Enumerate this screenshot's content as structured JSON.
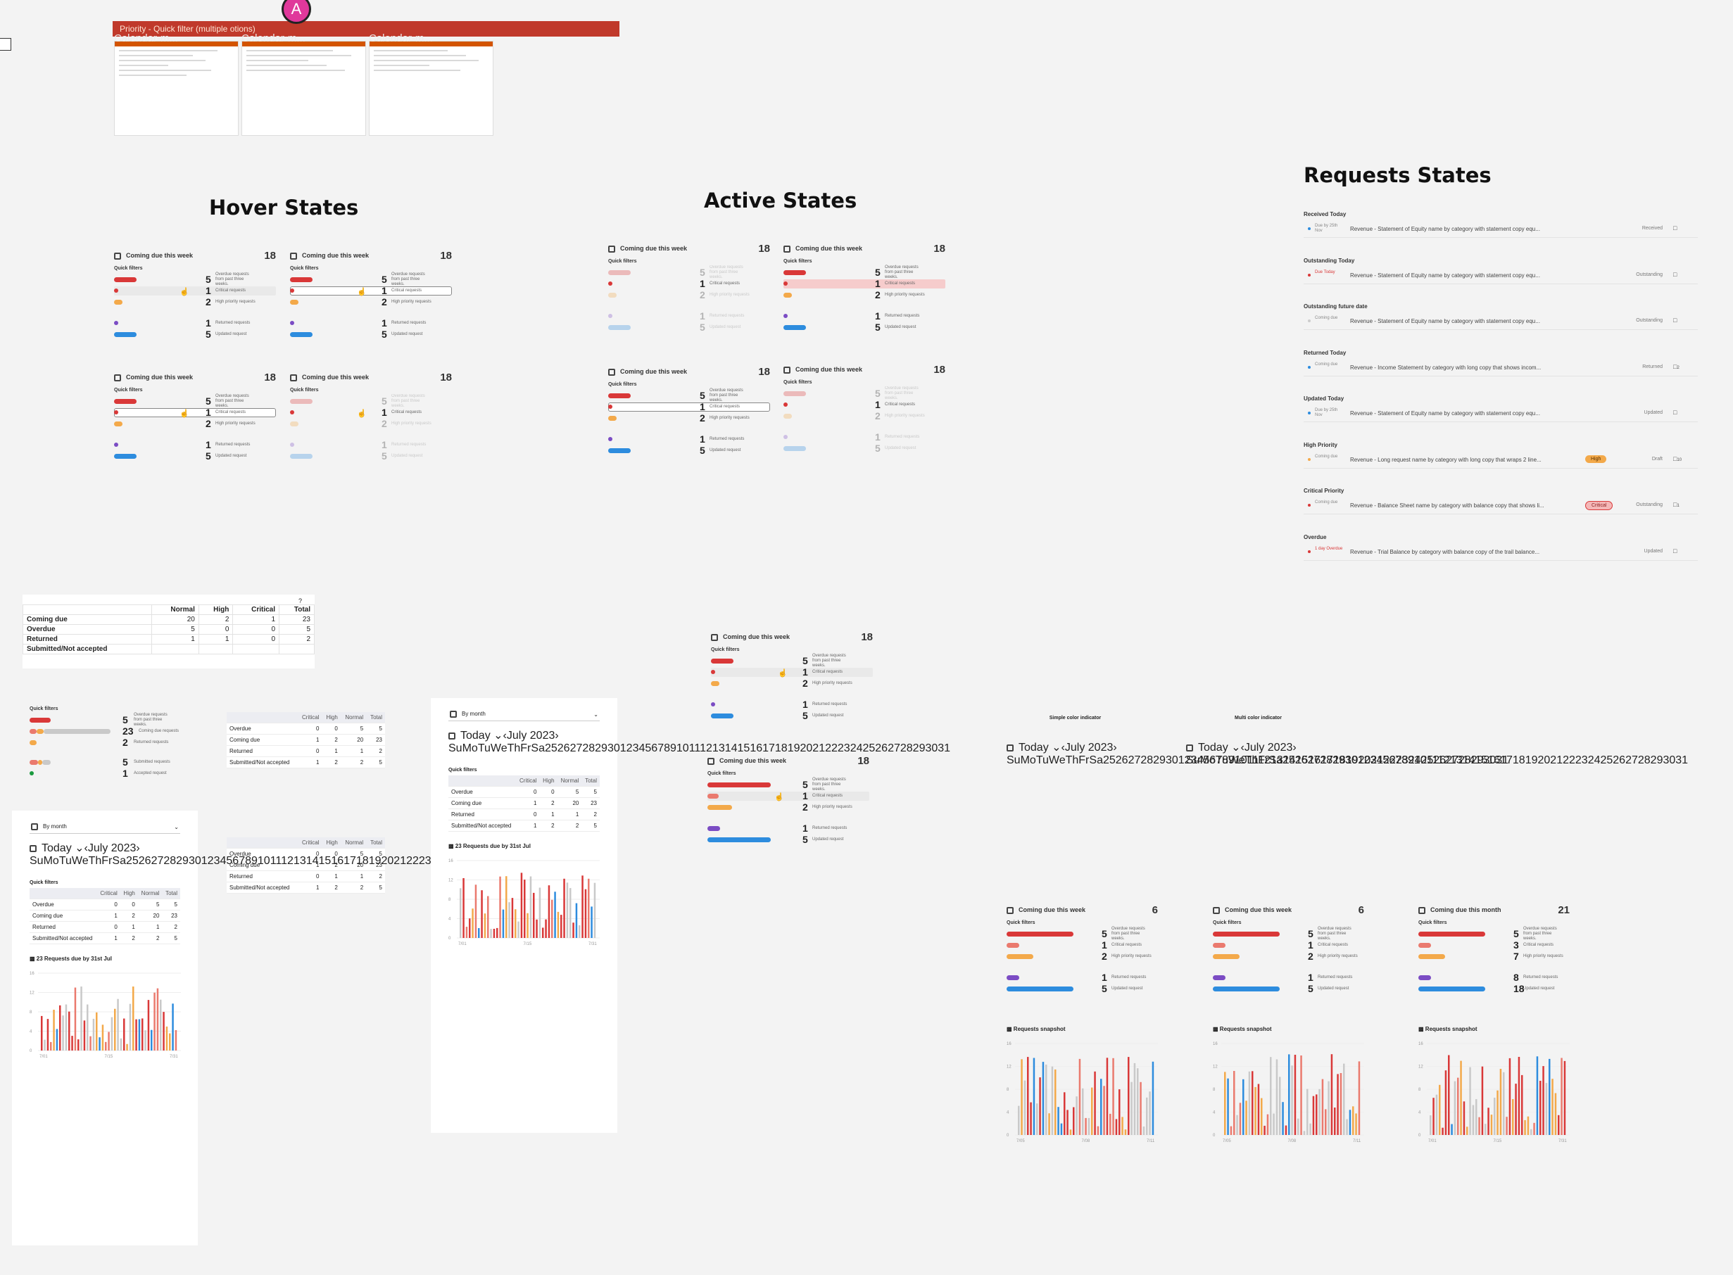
{
  "top": {
    "bar_title": "Priority - Quick filter (multiple otions)",
    "avatar_initial": "A",
    "thumbs": [
      "Calendar-m...",
      "Calendar-m...",
      "Calendar-m..."
    ]
  },
  "sections": {
    "hover": "Hover States",
    "active": "Active States",
    "requests": "Requests States"
  },
  "widget": {
    "title": "Coming due this week",
    "title_month": "Coming due this month",
    "total": "18",
    "quick_filters": "Quick filters",
    "rows": [
      {
        "num": "5",
        "label": "Overdue requests from past three weeks."
      },
      {
        "num": "1",
        "label": "Critical requests"
      },
      {
        "num": "2",
        "label": "High priority requests"
      },
      {
        "num": "1",
        "label": "Returned requests"
      },
      {
        "num": "5",
        "label": "Updated request"
      }
    ]
  },
  "colors": {
    "red": "#d93838",
    "orange": "#f3a94a",
    "purple": "#7b4cc4",
    "blue": "#2d8cde",
    "green": "#1a9a3f"
  },
  "requests": [
    {
      "section": "Received Today",
      "due": "Due by 25th Nov",
      "name": "Revenue - Statement of Equity name by category with statement copy equ...",
      "status": "Received",
      "badge": ""
    },
    {
      "section": "Outstanding Today",
      "due": "Due Today",
      "name": "Revenue - Statement of Equity name by category with statement copy equ...",
      "status": "Outstanding",
      "badge": ""
    },
    {
      "section": "Outstanding future date",
      "due": "Coming due",
      "name": "Revenue - Statement of Equity name by category with statement copy equ...",
      "status": "Outstanding",
      "badge": ""
    },
    {
      "section": "Returned Today",
      "due": "Coming due",
      "name": "Revenue - Income Statement by category with long copy that shows incom...",
      "status": "Returned",
      "badge": "",
      "comments": "2"
    },
    {
      "section": "Updated Today",
      "due": "Due by 25th Nov",
      "name": "Revenue - Statement of Equity name by category with statement copy equ...",
      "status": "Updated",
      "badge": ""
    },
    {
      "section": "High Priority",
      "due": "Coming due",
      "name": "Revenue - Long request name by category with long copy that wraps 2 line...",
      "status": "Draft",
      "badge": "High",
      "comments": "10"
    },
    {
      "section": "Critical Priority",
      "due": "Coming due",
      "name": "Revenue - Balance Sheet name by category with balance copy that shows li...",
      "status": "Outstanding",
      "badge": "Critical",
      "comments": "1"
    },
    {
      "section": "Overdue",
      "due": "1 day Overdue",
      "name": "Revenue - Trial Balance by category with balance copy of the trail balance...",
      "status": "Updated",
      "badge": ""
    }
  ],
  "summary_table": {
    "corner": "?",
    "headers": [
      "",
      "Normal",
      "High",
      "Critical",
      "Total"
    ],
    "rows": [
      [
        "Coming due",
        "20",
        "2",
        "1",
        "23"
      ],
      [
        "Overdue",
        "5",
        "0",
        "0",
        "5"
      ],
      [
        "Returned",
        "1",
        "1",
        "0",
        "2"
      ],
      [
        "Submitted/Not accepted",
        "",
        "",
        "",
        ""
      ]
    ]
  },
  "mini_table": {
    "headers": [
      "",
      "Critical",
      "High",
      "Normal",
      "Total"
    ],
    "rows": [
      [
        "Overdue",
        "0",
        "0",
        "5",
        "5"
      ],
      [
        "Coming due",
        "1",
        "2",
        "20",
        "23"
      ],
      [
        "Returned",
        "0",
        "1",
        "1",
        "2"
      ],
      [
        "Submitted/Not accepted",
        "1",
        "2",
        "2",
        "5"
      ]
    ]
  },
  "qf_panel": {
    "label": "Quick filters",
    "rows": [
      {
        "num": "5",
        "label": "Overdue requests from past three weeks."
      },
      {
        "num": "23",
        "label": "Coming due requests"
      },
      {
        "num": "2",
        "label": "Returned requests"
      },
      {
        "num": "5",
        "label": "Submitted requests"
      },
      {
        "num": "1",
        "label": "Accepted request"
      }
    ]
  },
  "calendar": {
    "view": "By month",
    "today": "Today",
    "month": "July 2023",
    "weekdays": [
      "Su",
      "Mo",
      "Tu",
      "We",
      "Th",
      "Fr",
      "Sa"
    ],
    "days": [
      "25",
      "26",
      "27",
      "28",
      "29",
      "30",
      "1",
      "2",
      "3",
      "4",
      "5",
      "6",
      "7",
      "8",
      "9",
      "10",
      "11",
      "12",
      "13",
      "14",
      "15",
      "16",
      "17",
      "18",
      "19",
      "20",
      "21",
      "22",
      "23",
      "24",
      "25",
      "26",
      "27",
      "28",
      "29",
      "30",
      "31"
    ],
    "simple_label": "Simple color indicator",
    "multi_label": "Multi color indicator"
  },
  "chart_small": {
    "title": "23 Requests due by 31st Jul",
    "x_ticks": [
      "7/01",
      "7/15",
      "7/31"
    ],
    "y_ticks": [
      "16",
      "12",
      "8",
      "4",
      "0"
    ]
  },
  "snapshot": {
    "title": "Requests snapshot",
    "widgets": [
      {
        "title": "Coming due this week",
        "total": "6",
        "nums": [
          "5",
          "1",
          "2",
          "1",
          "5"
        ],
        "x_ticks": [
          "7/05",
          "7/08",
          "7/11"
        ]
      },
      {
        "title": "Coming due this week",
        "total": "6",
        "nums": [
          "5",
          "1",
          "2",
          "1",
          "5"
        ],
        "x_ticks": [
          "7/05",
          "7/08",
          "7/11"
        ]
      },
      {
        "title": "Coming due this month",
        "total": "21",
        "nums": [
          "5",
          "3",
          "7",
          "8",
          "18"
        ],
        "x_ticks": [
          "7/01",
          "7/15",
          "7/31"
        ]
      }
    ]
  }
}
